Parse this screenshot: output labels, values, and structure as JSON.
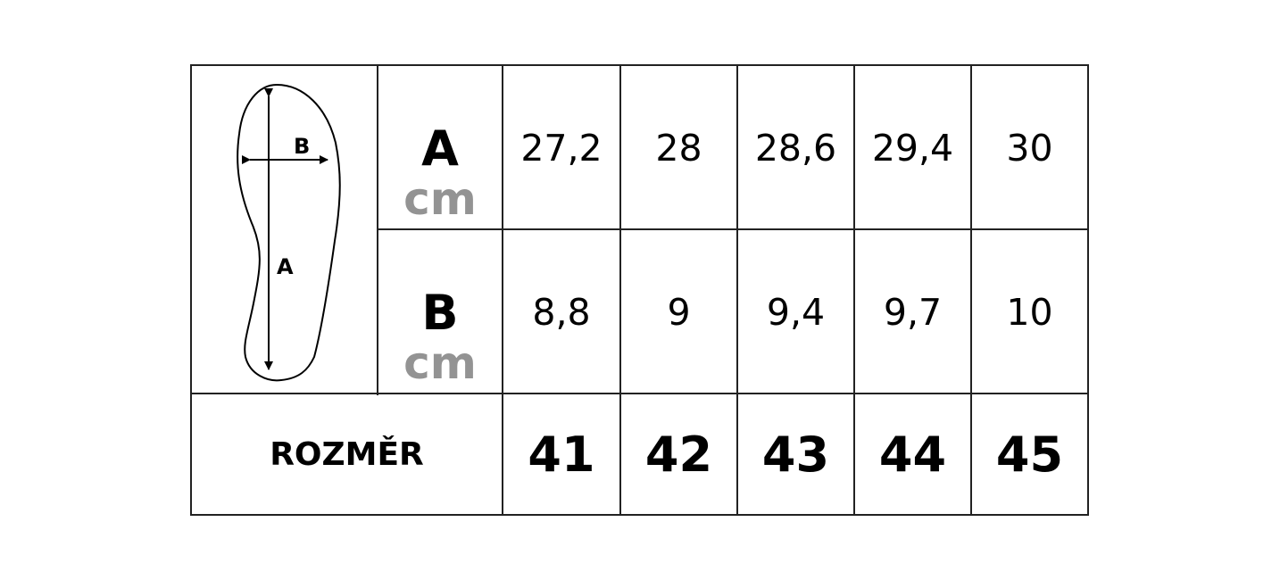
{
  "diagram": {
    "label_a": "A",
    "label_b": "B"
  },
  "rows": [
    {
      "label": "A",
      "unit": "cm",
      "values": [
        "27,2",
        "28",
        "28,6",
        "29,4",
        "30"
      ]
    },
    {
      "label": "B",
      "unit": "cm",
      "values": [
        "8,8",
        "9",
        "9,4",
        "9,7",
        "10"
      ]
    }
  ],
  "size_row": {
    "label": "ROZMĚR",
    "values": [
      "41",
      "42",
      "43",
      "44",
      "45"
    ]
  },
  "colors": {
    "unit": "#939393",
    "border": "#222222"
  }
}
